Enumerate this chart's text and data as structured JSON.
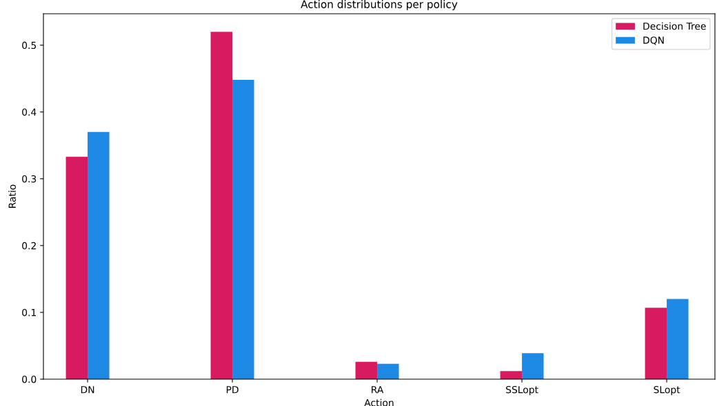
{
  "chart_data": {
    "type": "bar",
    "title": "Action distributions per policy",
    "xlabel": "Action",
    "ylabel": "Ratio",
    "categories": [
      "DN",
      "PD",
      "RA",
      "SSLopt",
      "SLopt"
    ],
    "series": [
      {
        "name": "Decision Tree",
        "color": "#d81b60",
        "values": [
          0.333,
          0.52,
          0.026,
          0.012,
          0.107
        ]
      },
      {
        "name": "DQN",
        "color": "#1e88e5",
        "values": [
          0.37,
          0.448,
          0.023,
          0.039,
          0.12
        ]
      }
    ],
    "ylim": [
      0,
      0.547
    ],
    "yticks": [
      {
        "value": 0,
        "label": "0.0"
      },
      {
        "value": 0.1,
        "label": "0.1"
      },
      {
        "value": 0.2,
        "label": "0.2"
      },
      {
        "value": 0.3,
        "label": "0.3"
      },
      {
        "value": 0.4,
        "label": "0.4"
      },
      {
        "value": 0.5,
        "label": "0.5"
      }
    ],
    "grid": false,
    "legend": "top right"
  }
}
